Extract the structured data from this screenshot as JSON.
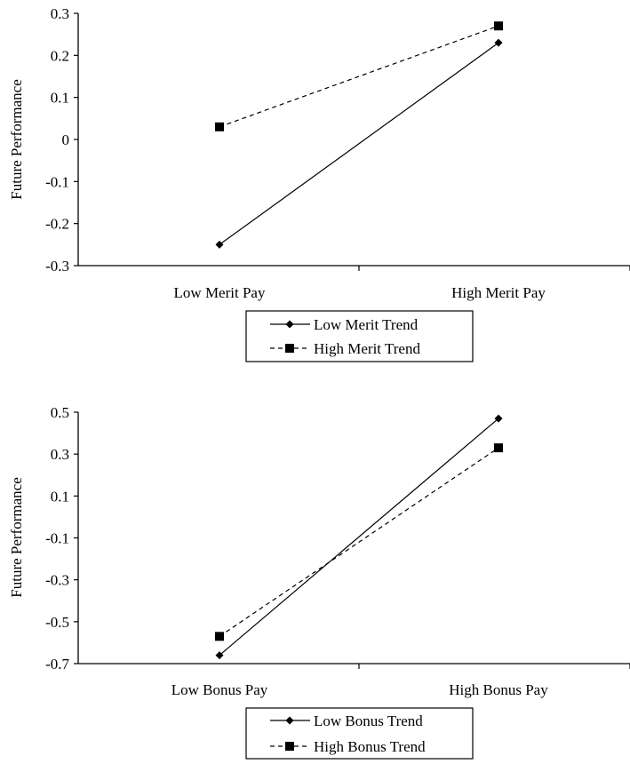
{
  "chart_data": [
    {
      "type": "line",
      "categories": [
        "Low Merit Pay",
        "High Merit Pay"
      ],
      "ylabel": "Future Performance",
      "xlabel": "",
      "ylim": [
        -0.3,
        0.3
      ],
      "yticks": [
        0.3,
        0.2,
        0.1,
        0,
        -0.1,
        -0.2,
        -0.3
      ],
      "ytick_labels": [
        "0.3",
        "0.2",
        "0.1",
        "0",
        "-0.1",
        "-0.2",
        "-0.3"
      ],
      "legend": "below",
      "grid": false,
      "series": [
        {
          "name": "Low Merit Trend",
          "values": [
            -0.25,
            0.23
          ],
          "line_style": "solid",
          "marker": "diamond",
          "color": "#000000"
        },
        {
          "name": "High Merit Trend",
          "values": [
            0.03,
            0.27
          ],
          "line_style": "dashed",
          "marker": "square",
          "color": "#000000"
        }
      ]
    },
    {
      "type": "line",
      "categories": [
        "Low Bonus Pay",
        "High Bonus Pay"
      ],
      "ylabel": "Future Performance",
      "xlabel": "",
      "ylim": [
        -0.7,
        0.5
      ],
      "yticks": [
        0.5,
        0.3,
        0.1,
        -0.1,
        -0.3,
        -0.5,
        -0.7
      ],
      "ytick_labels": [
        "0.5",
        "0.3",
        "0.1",
        "-0.1",
        "-0.3",
        "-0.5",
        "-0.7"
      ],
      "legend": "below",
      "grid": false,
      "series": [
        {
          "name": "Low Bonus Trend",
          "values": [
            -0.66,
            0.47
          ],
          "line_style": "solid",
          "marker": "diamond",
          "color": "#000000"
        },
        {
          "name": "High Bonus Trend",
          "values": [
            -0.57,
            0.33
          ],
          "line_style": "dashed",
          "marker": "square",
          "color": "#000000"
        }
      ]
    }
  ]
}
